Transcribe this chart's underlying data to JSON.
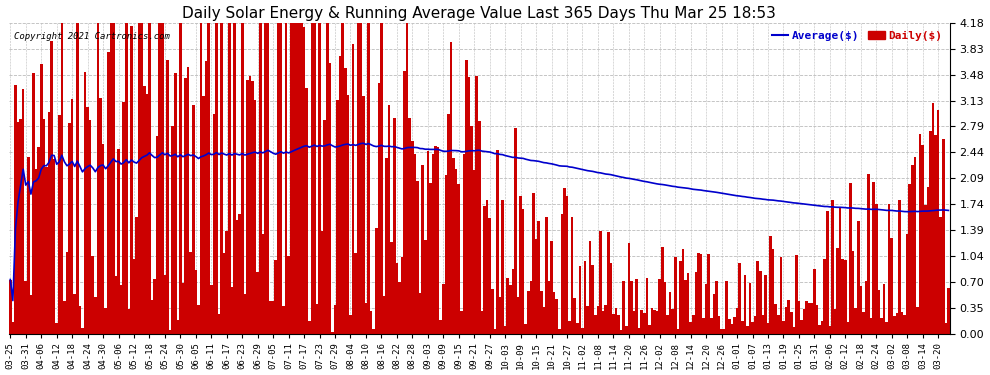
{
  "title": "Daily Solar Energy & Running Average Value Last 365 Days Thu Mar 25 18:53",
  "copyright": "Copyright 2021 Cartronics.com",
  "legend_avg": "Average($)",
  "legend_daily": "Daily($)",
  "bar_color": "#cc0000",
  "avg_line_color": "#0000cc",
  "background_color": "#ffffff",
  "plot_bg_color": "#ffffff",
  "grid_color": "#bbbbbb",
  "title_fontsize": 11,
  "ylim": [
    0.0,
    4.18
  ],
  "yticks": [
    0.0,
    0.35,
    0.7,
    1.04,
    1.39,
    1.74,
    2.09,
    2.44,
    2.79,
    3.13,
    3.48,
    3.83,
    4.18
  ],
  "x_labels": [
    "03-25",
    "03-31",
    "04-06",
    "04-12",
    "04-18",
    "04-24",
    "04-30",
    "05-06",
    "05-12",
    "05-18",
    "05-24",
    "05-30",
    "06-05",
    "06-11",
    "06-17",
    "06-23",
    "06-29",
    "07-05",
    "07-11",
    "07-17",
    "07-23",
    "07-29",
    "08-04",
    "08-10",
    "08-16",
    "08-22",
    "08-28",
    "09-03",
    "09-09",
    "09-15",
    "09-21",
    "09-27",
    "10-03",
    "10-09",
    "10-15",
    "10-21",
    "10-27",
    "11-02",
    "11-08",
    "11-14",
    "11-20",
    "11-26",
    "12-02",
    "12-08",
    "12-14",
    "12-20",
    "12-26",
    "01-01",
    "01-07",
    "01-13",
    "01-19",
    "01-25",
    "01-31",
    "02-06",
    "02-12",
    "02-18",
    "02-24",
    "03-02",
    "03-08",
    "03-14",
    "03-20"
  ]
}
